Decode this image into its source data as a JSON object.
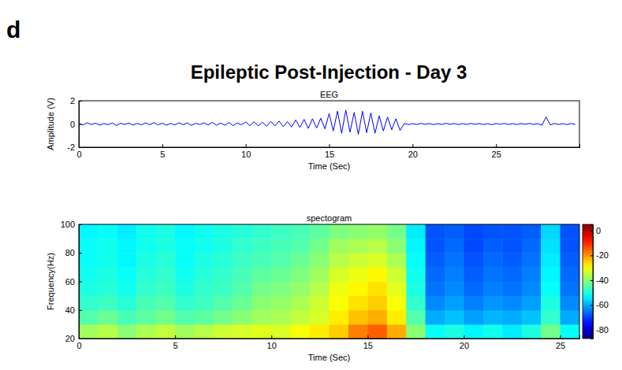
{
  "panel_label": "d",
  "title": "Epileptic Post-Injection - Day 3",
  "chart_data": [
    {
      "type": "line",
      "title": "EEG",
      "x_label": "Time (Sec)",
      "y_label": "Amplitude (V)",
      "x": [
        0,
        0.25,
        0.5,
        0.75,
        1,
        1.25,
        1.5,
        1.75,
        2,
        2.25,
        2.5,
        2.75,
        3,
        3.25,
        3.5,
        3.75,
        4,
        4.25,
        4.5,
        4.75,
        5,
        5.25,
        5.5,
        5.75,
        6,
        6.25,
        6.5,
        6.75,
        7,
        7.25,
        7.5,
        7.75,
        8,
        8.25,
        8.5,
        8.75,
        9,
        9.25,
        9.5,
        9.75,
        10,
        10.25,
        10.5,
        10.75,
        11,
        11.25,
        11.5,
        11.75,
        12,
        12.25,
        12.5,
        12.75,
        13,
        13.25,
        13.5,
        13.75,
        14,
        14.25,
        14.5,
        14.75,
        15,
        15.25,
        15.5,
        15.75,
        16,
        16.25,
        16.5,
        16.75,
        17,
        17.25,
        17.5,
        17.75,
        18,
        18.25,
        18.5,
        18.75,
        19,
        19.25,
        19.5,
        19.75,
        20,
        20.25,
        20.5,
        20.75,
        21,
        21.25,
        21.5,
        21.75,
        22,
        22.25,
        22.5,
        22.75,
        23,
        23.25,
        23.5,
        23.75,
        24,
        24.25,
        24.5,
        24.75,
        25,
        25.25,
        25.5,
        25.75,
        26,
        26.25,
        26.5,
        26.75,
        27,
        27.25,
        27.5,
        27.75,
        28,
        28.25,
        28.5,
        28.75,
        29,
        29.25,
        29.5,
        29.75
      ],
      "series": [
        {
          "name": "EEG",
          "color": "#0000ff",
          "values": [
            0.05,
            -0.08,
            0.1,
            -0.05,
            0.07,
            -0.1,
            0.04,
            -0.06,
            0.09,
            -0.12,
            0.06,
            -0.04,
            0.08,
            -0.09,
            0.05,
            -0.07,
            0.1,
            -0.06,
            0.12,
            -0.08,
            0.07,
            -0.1,
            0.05,
            -0.08,
            0.11,
            -0.06,
            0.09,
            -0.12,
            0.06,
            -0.05,
            0.1,
            -0.09,
            0.15,
            -0.11,
            0.08,
            -0.1,
            0.12,
            -0.14,
            0.09,
            -0.07,
            0.18,
            -0.15,
            0.2,
            -0.17,
            0.14,
            -0.2,
            0.22,
            -0.16,
            0.25,
            -0.22,
            0.2,
            -0.26,
            0.35,
            -0.3,
            0.4,
            -0.38,
            0.45,
            -0.35,
            0.5,
            -0.42,
            0.9,
            -0.6,
            1.1,
            -0.8,
            1.2,
            -0.7,
            1.0,
            -0.9,
            1.1,
            -0.75,
            0.95,
            -0.8,
            0.7,
            -0.6,
            0.6,
            -0.5,
            0.45,
            -0.55,
            0.04,
            -0.05,
            0.03,
            -0.04,
            0.05,
            -0.03,
            0.04,
            -0.05,
            0.03,
            -0.04,
            0.06,
            -0.03,
            0.04,
            -0.05,
            0.03,
            -0.04,
            0.05,
            -0.03,
            0.04,
            -0.05,
            0.03,
            -0.06,
            0.04,
            -0.03,
            0.05,
            -0.04,
            0.03,
            -0.05,
            0.04,
            -0.03,
            0.05,
            -0.04,
            0.03,
            -0.1,
            0.6,
            -0.08,
            0.05,
            -0.04,
            0.03,
            -0.05,
            0.04,
            -0.03
          ]
        }
      ],
      "xlim": [
        0,
        30
      ],
      "xticks": [
        0,
        5,
        10,
        15,
        20,
        25
      ],
      "ylim": [
        -2,
        2
      ],
      "yticks": [
        -2,
        0,
        2
      ]
    },
    {
      "type": "heatmap",
      "title": "spectogram",
      "x_label": "Time (Sec)",
      "y_label": "Frequency(Hz)",
      "x_bins": [
        0,
        1,
        2,
        3,
        4,
        5,
        6,
        7,
        8,
        9,
        10,
        11,
        12,
        13,
        14,
        15,
        16,
        17,
        18,
        19,
        20,
        21,
        22,
        23,
        24,
        25,
        26
      ],
      "y_bins": [
        20,
        30,
        40,
        50,
        60,
        70,
        80,
        90,
        100
      ],
      "values": [
        [
          -38,
          -36,
          -40,
          -37,
          -35,
          -38,
          -36,
          -34,
          -33,
          -32,
          -33,
          -30,
          -28,
          -25,
          -18,
          -15,
          -22,
          -40,
          -52,
          -50,
          -53,
          -51,
          -54,
          -50,
          -42,
          -52
        ],
        [
          -45,
          -43,
          -46,
          -44,
          -42,
          -45,
          -44,
          -42,
          -40,
          -38,
          -37,
          -35,
          -33,
          -28,
          -24,
          -22,
          -28,
          -45,
          -60,
          -58,
          -61,
          -59,
          -60,
          -58,
          -48,
          -60
        ],
        [
          -48,
          -47,
          -49,
          -46,
          -45,
          -48,
          -47,
          -45,
          -43,
          -40,
          -39,
          -37,
          -34,
          -30,
          -27,
          -25,
          -30,
          -48,
          -63,
          -61,
          -64,
          -62,
          -63,
          -61,
          -50,
          -63
        ],
        [
          -50,
          -49,
          -51,
          -48,
          -47,
          -50,
          -48,
          -47,
          -45,
          -42,
          -41,
          -39,
          -36,
          -31,
          -29,
          -27,
          -32,
          -50,
          -65,
          -63,
          -66,
          -64,
          -65,
          -63,
          -52,
          -65
        ],
        [
          -51,
          -50,
          -52,
          -49,
          -48,
          -51,
          -49,
          -48,
          -46,
          -44,
          -43,
          -41,
          -38,
          -33,
          -31,
          -29,
          -34,
          -51,
          -66,
          -64,
          -67,
          -65,
          -66,
          -64,
          -53,
          -66
        ],
        [
          -52,
          -51,
          -53,
          -50,
          -49,
          -52,
          -50,
          -49,
          -47,
          -46,
          -45,
          -43,
          -40,
          -36,
          -34,
          -33,
          -37,
          -52,
          -67,
          -65,
          -68,
          -66,
          -67,
          -65,
          -54,
          -67
        ],
        [
          -52,
          -51,
          -53,
          -51,
          -50,
          -52,
          -51,
          -50,
          -48,
          -47,
          -46,
          -45,
          -42,
          -38,
          -37,
          -36,
          -40,
          -53,
          -68,
          -66,
          -69,
          -67,
          -68,
          -66,
          -55,
          -68
        ],
        [
          -53,
          -52,
          -54,
          -51,
          -50,
          -53,
          -51,
          -50,
          -49,
          -48,
          -47,
          -46,
          -44,
          -41,
          -40,
          -39,
          -42,
          -54,
          -68,
          -67,
          -69,
          -68,
          -68,
          -67,
          -56,
          -68
        ]
      ],
      "xlim": [
        0,
        26
      ],
      "xticks": [
        0,
        5,
        10,
        15,
        20,
        25
      ],
      "ylim": [
        20,
        100
      ],
      "yticks": [
        20,
        40,
        60,
        80,
        100
      ],
      "color_range": [
        -87,
        5
      ],
      "color_ticks": [
        0,
        -20,
        -40,
        -60,
        -80
      ]
    }
  ]
}
